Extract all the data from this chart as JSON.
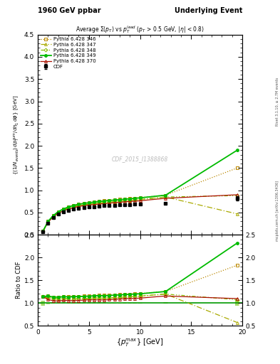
{
  "title_left": "1960 GeV ppbar",
  "title_right": "Underlying Event",
  "subtitle": "Average $\\Sigma(p_T)$ vs $p_T^{lead}$ ($p_T$ > 0.5 GeV, $|\\eta|$ < 0.8)",
  "xlabel": "$\\{p_T^{max}\\}$ [GeV]",
  "ylabel": "$\\{(1/N_{events})\\, dp_T^{sum}/d\\eta_1\\, d\\phi\\}$ [GeV]",
  "ylabel_ratio": "Ratio to CDF",
  "watermark": "CDF_2015_I1388868",
  "right_label": "mcplots.cern.ch [arXiv:1306.3436]",
  "right_label2": "Rivet 3.1.10, ≥ 2.7M events",
  "xlim": [
    0,
    20
  ],
  "ylim_main": [
    0,
    4.5
  ],
  "ylim_ratio": [
    0.5,
    2.5
  ],
  "cdf_x": [
    0.5,
    1.0,
    1.5,
    2.0,
    2.5,
    3.0,
    3.5,
    4.0,
    4.5,
    5.0,
    5.5,
    6.0,
    6.5,
    7.0,
    7.5,
    8.0,
    8.5,
    9.0,
    9.5,
    10.0,
    12.5,
    19.5
  ],
  "cdf_y": [
    0.07,
    0.26,
    0.38,
    0.46,
    0.51,
    0.55,
    0.58,
    0.6,
    0.615,
    0.625,
    0.635,
    0.645,
    0.655,
    0.66,
    0.665,
    0.67,
    0.675,
    0.68,
    0.685,
    0.69,
    0.71,
    0.82
  ],
  "cdf_yerr": [
    0.004,
    0.005,
    0.005,
    0.005,
    0.005,
    0.005,
    0.005,
    0.005,
    0.005,
    0.005,
    0.005,
    0.005,
    0.005,
    0.005,
    0.005,
    0.005,
    0.005,
    0.005,
    0.005,
    0.005,
    0.01,
    0.05
  ],
  "p346_x": [
    0.5,
    1.0,
    1.5,
    2.0,
    2.5,
    3.0,
    3.5,
    4.0,
    4.5,
    5.0,
    5.5,
    6.0,
    6.5,
    7.0,
    7.5,
    8.0,
    8.5,
    9.0,
    9.5,
    10.0,
    12.5,
    19.5
  ],
  "p346_y": [
    0.08,
    0.3,
    0.43,
    0.52,
    0.58,
    0.63,
    0.665,
    0.69,
    0.71,
    0.725,
    0.74,
    0.755,
    0.765,
    0.775,
    0.785,
    0.795,
    0.805,
    0.815,
    0.825,
    0.835,
    0.89,
    1.5
  ],
  "p347_x": [
    0.5,
    1.0,
    1.5,
    2.0,
    2.5,
    3.0,
    3.5,
    4.0,
    4.5,
    5.0,
    5.5,
    6.0,
    6.5,
    7.0,
    7.5,
    8.0,
    8.5,
    9.0,
    9.5,
    10.0,
    12.5,
    19.5
  ],
  "p347_y": [
    0.08,
    0.29,
    0.42,
    0.5,
    0.56,
    0.6,
    0.635,
    0.655,
    0.675,
    0.69,
    0.705,
    0.715,
    0.725,
    0.735,
    0.745,
    0.755,
    0.765,
    0.775,
    0.785,
    0.795,
    0.85,
    0.47
  ],
  "p348_x": [
    0.5,
    1.0,
    1.5,
    2.0,
    2.5,
    3.0,
    3.5,
    4.0,
    4.5,
    5.0,
    5.5,
    6.0,
    6.5,
    7.0,
    7.5,
    8.0,
    8.5,
    9.0,
    9.5,
    10.0,
    12.5,
    19.5
  ],
  "p348_y": [
    0.08,
    0.29,
    0.42,
    0.5,
    0.56,
    0.6,
    0.63,
    0.655,
    0.675,
    0.69,
    0.705,
    0.715,
    0.725,
    0.735,
    0.745,
    0.755,
    0.765,
    0.775,
    0.785,
    0.795,
    0.85,
    0.88
  ],
  "p349_x": [
    0.5,
    1.0,
    1.5,
    2.0,
    2.5,
    3.0,
    3.5,
    4.0,
    4.5,
    5.0,
    5.5,
    6.0,
    6.5,
    7.0,
    7.5,
    8.0,
    8.5,
    9.0,
    9.5,
    10.0,
    12.5,
    19.5
  ],
  "p349_y": [
    0.08,
    0.3,
    0.43,
    0.52,
    0.58,
    0.625,
    0.66,
    0.685,
    0.705,
    0.72,
    0.735,
    0.75,
    0.76,
    0.77,
    0.78,
    0.79,
    0.8,
    0.81,
    0.82,
    0.83,
    0.89,
    1.9
  ],
  "p370_x": [
    0.5,
    1.0,
    1.5,
    2.0,
    2.5,
    3.0,
    3.5,
    4.0,
    4.5,
    5.0,
    5.5,
    6.0,
    6.5,
    7.0,
    7.5,
    8.0,
    8.5,
    9.0,
    9.5,
    10.0,
    12.5,
    19.5
  ],
  "p370_y": [
    0.08,
    0.28,
    0.4,
    0.48,
    0.54,
    0.58,
    0.61,
    0.635,
    0.655,
    0.67,
    0.68,
    0.69,
    0.7,
    0.71,
    0.72,
    0.73,
    0.74,
    0.75,
    0.755,
    0.765,
    0.82,
    0.9
  ],
  "color_cdf": "#000000",
  "color_346": "#bb8800",
  "color_347": "#aaaa00",
  "color_348": "#88bb00",
  "color_349": "#00bb00",
  "color_370": "#aa1100"
}
